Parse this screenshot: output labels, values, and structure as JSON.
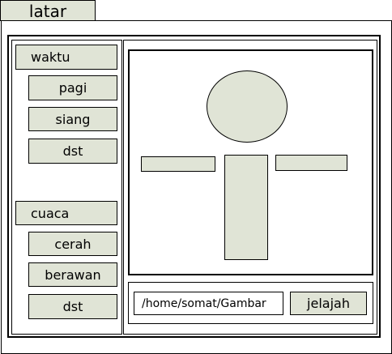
{
  "window": {
    "tab_title": "latar"
  },
  "sidebar": {
    "group1": {
      "label": "waktu",
      "items": [
        "pagi",
        "siang",
        "dst"
      ]
    },
    "group2": {
      "label": "cuaca",
      "items": [
        "cerah",
        "berawan",
        "dst"
      ]
    }
  },
  "path_bar": {
    "path_value": "/home/somat/Gambar",
    "browse_label": "jelajah"
  },
  "colors": {
    "fill": "#e0e4d6",
    "border": "#000000",
    "background": "#ffffff"
  }
}
